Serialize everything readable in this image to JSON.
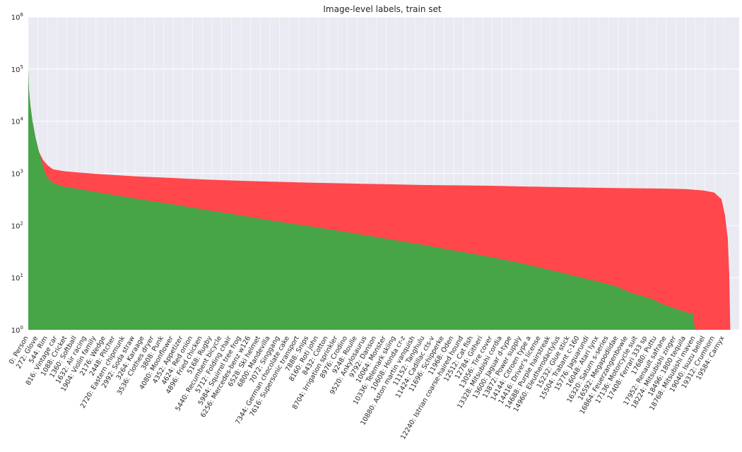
{
  "chart_data": {
    "type": "area",
    "title": "Image-level labels, train set",
    "xlabel": "",
    "ylabel": "",
    "y_scale": "log",
    "ylim": [
      1,
      1000000
    ],
    "y_ticks": [
      {
        "value": 1,
        "base": "10",
        "exp": "0"
      },
      {
        "value": 10,
        "base": "10",
        "exp": "1"
      },
      {
        "value": 100,
        "base": "10",
        "exp": "2"
      },
      {
        "value": 1000,
        "base": "10",
        "exp": "3"
      },
      {
        "value": 10000,
        "base": "10",
        "exp": "4"
      },
      {
        "value": 100000,
        "base": "10",
        "exp": "5"
      },
      {
        "value": 1000000,
        "base": "10",
        "exp": "6"
      }
    ],
    "xlim": [
      0,
      20000
    ],
    "grid": true,
    "legend": "none",
    "colors": {
      "total": "#ff474c",
      "verified": "#47a447",
      "background": "#eaeaf2",
      "grid": "#ffffff"
    },
    "x_ticks": [
      {
        "x": 0,
        "label": "0: Person"
      },
      {
        "x": 272,
        "label": "272: Glove"
      },
      {
        "x": 544,
        "label": "544: Rim"
      },
      {
        "x": 816,
        "label": "816: Vintage car"
      },
      {
        "x": 1088,
        "label": "1088: Cricket"
      },
      {
        "x": 1360,
        "label": "1360: Softball"
      },
      {
        "x": 1632,
        "label": "1632: Air racing"
      },
      {
        "x": 1904,
        "label": "1904: Violin family"
      },
      {
        "x": 2176,
        "label": "2176: Wedge"
      },
      {
        "x": 2448,
        "label": "2448: Pitcher"
      },
      {
        "x": 2720,
        "label": "2720: Eastern chipmunk"
      },
      {
        "x": 2992,
        "label": "2992: Soda straw"
      },
      {
        "x": 3264,
        "label": "3264: Karaage"
      },
      {
        "x": 3536,
        "label": "3536: Clothes dryer"
      },
      {
        "x": 3808,
        "label": "3808: Punk"
      },
      {
        "x": 4080,
        "label": "4080: Moonflower"
      },
      {
        "x": 4352,
        "label": "4352: Appetizer"
      },
      {
        "x": 4624,
        "label": "4624: Red onion"
      },
      {
        "x": 4896,
        "label": "4896: Fried chicken"
      },
      {
        "x": 5168,
        "label": "5168: Rugby"
      },
      {
        "x": 5440,
        "label": "5440: Recumbent bicycle"
      },
      {
        "x": 5712,
        "label": "5712: Folding chair"
      },
      {
        "x": 5984,
        "label": "5984: Squirrel tree frog"
      },
      {
        "x": 6256,
        "label": "6256: Mercedes-benz w126"
      },
      {
        "x": 6528,
        "label": "6528: Ski helmet"
      },
      {
        "x": 6800,
        "label": "6800: Mandevilla"
      },
      {
        "x": 7072,
        "label": "7072: Singgang"
      },
      {
        "x": 7344,
        "label": "7344: German chocolate cake"
      },
      {
        "x": 7616,
        "label": "7616: Supersonic transport"
      },
      {
        "x": 7888,
        "label": "7888: Snips"
      },
      {
        "x": 8160,
        "label": "8160: Roti john"
      },
      {
        "x": 8432,
        "label": "8432: Cotton"
      },
      {
        "x": 8704,
        "label": "8704: Irrigation sprinkler"
      },
      {
        "x": 8976,
        "label": "8976: Crodino"
      },
      {
        "x": 9248,
        "label": "9248: Roulle"
      },
      {
        "x": 9520,
        "label": "9520: Ankylosaurus"
      },
      {
        "x": 9792,
        "label": "9792: Danson"
      },
      {
        "x": 10064,
        "label": "10064: Monster"
      },
      {
        "x": 10336,
        "label": "10336: Telemark skiing"
      },
      {
        "x": 10608,
        "label": "10608: Honda cr-z"
      },
      {
        "x": 10880,
        "label": "10880: Aston martin vanquish"
      },
      {
        "x": 11152,
        "label": "11152: Tanghulu"
      },
      {
        "x": 11424,
        "label": "11424: Cadillac cts-v"
      },
      {
        "x": 11696,
        "label": "11696: Schipperke"
      },
      {
        "x": 11968,
        "label": "11968: Oden"
      },
      {
        "x": 12240,
        "label": "12240: Istrian coarse-haired hound"
      },
      {
        "x": 12512,
        "label": "12512: Cat fish"
      },
      {
        "x": 12784,
        "label": "12784: Githeri"
      },
      {
        "x": 13056,
        "label": "13056: Tire cover"
      },
      {
        "x": 13328,
        "label": "13328: Mitsubishi cordia"
      },
      {
        "x": 13600,
        "label": "13600: Jaguar d-type"
      },
      {
        "x": 13872,
        "label": "13872: Power supply"
      },
      {
        "x": 14144,
        "label": "14144: Citroen type a"
      },
      {
        "x": 14416,
        "label": "14416: Driver's license"
      },
      {
        "x": 14688,
        "label": "14688: Purple hairstreak"
      },
      {
        "x": 14960,
        "label": "14960: Eleutherodactylus"
      },
      {
        "x": 15232,
        "label": "15232: Glue stick"
      },
      {
        "x": 15504,
        "label": "15504: Trabant c-160"
      },
      {
        "x": 15776,
        "label": "15776: Jaguarundi"
      },
      {
        "x": 16048,
        "label": "16048: Atari lynx"
      },
      {
        "x": 16320,
        "label": "16320: Saturn s-series"
      },
      {
        "x": 16592,
        "label": "16592: Megapodiidae"
      },
      {
        "x": 16864,
        "label": "16864: Feuerzangenbowle"
      },
      {
        "x": 17136,
        "label": "17136: Motorcycle suit"
      },
      {
        "x": 17408,
        "label": "17408: Ferrari 333 sp"
      },
      {
        "x": 17680,
        "label": "17680: Puttu"
      },
      {
        "x": 17952,
        "label": "17952: Renault safrane"
      },
      {
        "x": 18224,
        "label": "18224: Mitsubishi zinger"
      },
      {
        "x": 18496,
        "label": "18496: 1800 tequila"
      },
      {
        "x": 18768,
        "label": "18768: Mitsubishi maven"
      },
      {
        "x": 19040,
        "label": "19040: Isuzu bellel"
      },
      {
        "x": 19312,
        "label": "19312: Crumhorn"
      },
      {
        "x": 19584,
        "label": "19584: Carnyx"
      }
    ],
    "series": [
      {
        "key": "total",
        "points": [
          [
            0,
            80000
          ],
          [
            20,
            40000
          ],
          [
            60,
            20000
          ],
          [
            120,
            10000
          ],
          [
            200,
            5000
          ],
          [
            300,
            2600
          ],
          [
            420,
            1800
          ],
          [
            560,
            1400
          ],
          [
            700,
            1200
          ],
          [
            1000,
            1100
          ],
          [
            1500,
            1030
          ],
          [
            2000,
            970
          ],
          [
            3000,
            880
          ],
          [
            4000,
            820
          ],
          [
            5000,
            760
          ],
          [
            6000,
            720
          ],
          [
            7000,
            690
          ],
          [
            8000,
            660
          ],
          [
            9000,
            640
          ],
          [
            10000,
            620
          ],
          [
            11000,
            600
          ],
          [
            12000,
            590
          ],
          [
            13000,
            580
          ],
          [
            14000,
            560
          ],
          [
            15000,
            545
          ],
          [
            16000,
            530
          ],
          [
            17000,
            520
          ],
          [
            18000,
            510
          ],
          [
            18500,
            500
          ],
          [
            19000,
            470
          ],
          [
            19300,
            430
          ],
          [
            19500,
            320
          ],
          [
            19600,
            160
          ],
          [
            19680,
            55
          ],
          [
            19720,
            12
          ],
          [
            19750,
            1
          ]
        ]
      },
      {
        "key": "verified",
        "points": [
          [
            0,
            100000
          ],
          [
            20,
            40000
          ],
          [
            60,
            20000
          ],
          [
            120,
            10000
          ],
          [
            200,
            5000
          ],
          [
            300,
            2600
          ],
          [
            400,
            1500
          ],
          [
            500,
            900
          ],
          [
            700,
            650
          ],
          [
            1000,
            560
          ],
          [
            2000,
            430
          ],
          [
            3000,
            330
          ],
          [
            4000,
            260
          ],
          [
            5000,
            200
          ],
          [
            6000,
            155
          ],
          [
            7000,
            120
          ],
          [
            8000,
            95
          ],
          [
            9000,
            74
          ],
          [
            10000,
            57
          ],
          [
            11000,
            44
          ],
          [
            12000,
            33
          ],
          [
            13000,
            25
          ],
          [
            14000,
            18
          ],
          [
            15000,
            12.5
          ],
          [
            16000,
            8.5
          ],
          [
            16500,
            7
          ],
          [
            17000,
            5
          ],
          [
            17500,
            4
          ],
          [
            17900,
            3
          ],
          [
            18400,
            2.3
          ],
          [
            18700,
            2
          ],
          [
            18760,
            1
          ],
          [
            20000,
            1
          ]
        ]
      }
    ]
  }
}
